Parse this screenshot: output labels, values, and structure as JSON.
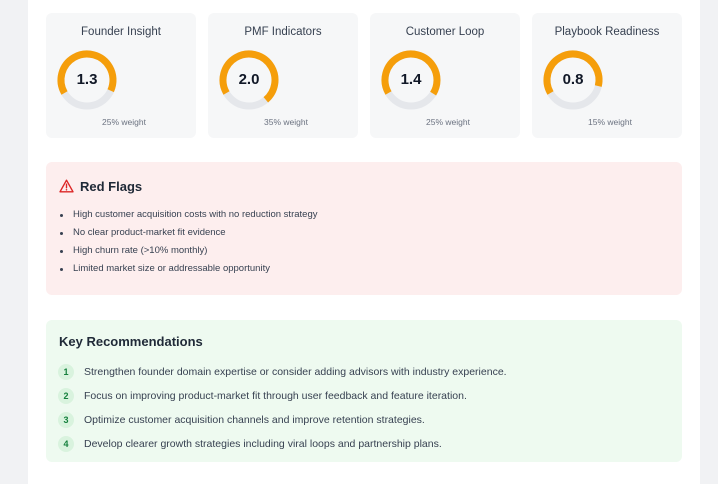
{
  "metrics": [
    {
      "title": "Founder Insight",
      "value": "1.3",
      "weight": "25% weight",
      "score_fraction": 0.65
    },
    {
      "title": "PMF Indicators",
      "value": "2.0",
      "weight": "35% weight",
      "score_fraction": 0.72
    },
    {
      "title": "Customer Loop",
      "value": "1.4",
      "weight": "25% weight",
      "score_fraction": 0.67
    },
    {
      "title": "Playbook Readiness",
      "value": "0.8",
      "weight": "15% weight",
      "score_fraction": 0.62
    }
  ],
  "red_flags": {
    "icon": "warning-triangle-icon",
    "title": "Red Flags",
    "items": [
      "High customer acquisition costs with no reduction strategy",
      "No clear product-market fit evidence",
      "High churn rate (>10% monthly)",
      "Limited market size or addressable opportunity"
    ]
  },
  "recommendations": {
    "title": "Key Recommendations",
    "items": [
      {
        "num": "1",
        "text": "Strengthen founder domain expertise or consider adding advisors with industry experience."
      },
      {
        "num": "2",
        "text": "Focus on improving product-market fit through user feedback and feature iteration."
      },
      {
        "num": "3",
        "text": "Optimize customer acquisition channels and improve retention strategies."
      },
      {
        "num": "4",
        "text": "Develop clearer growth strategies including viral loops and partnership plans."
      }
    ]
  },
  "colors": {
    "gauge_fill": "#f59e0b",
    "gauge_track": "#e5e7eb",
    "red_flag_bg": "#fdeeee",
    "red_flag_icon": "#dc2626",
    "recommendation_bg": "#eefaf0",
    "recommendation_badge": "#d9f3de"
  }
}
